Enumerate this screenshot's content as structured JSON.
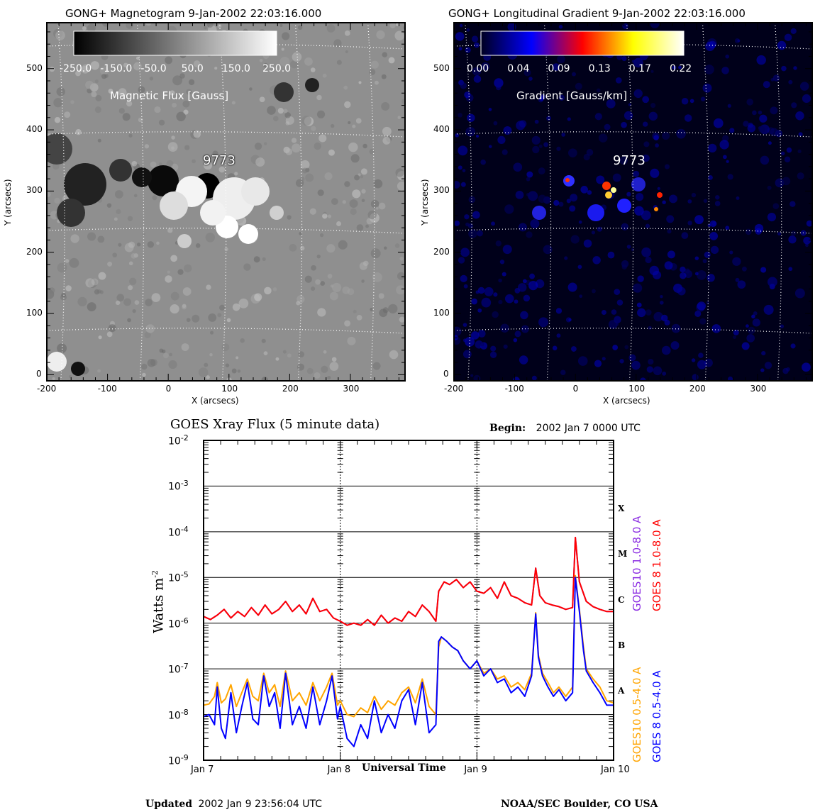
{
  "chart_data": [
    {
      "type": "heatmap",
      "title": "GONG+ Magnetogram   9-Jan-2002 22:03:16.000",
      "colorbar": {
        "ticks": [
          "-250.0",
          "-150.0",
          "-50.0",
          "50.0",
          "150.0",
          "250.0"
        ],
        "label": "Magnetic Flux [Gauss]",
        "range": [
          -250,
          250
        ],
        "colors": [
          "#000000",
          "#ffffff"
        ]
      },
      "xlabel": "X (arcsecs)",
      "ylabel": "Y (arcsecs)",
      "xticks": [
        "-200",
        "-100",
        "0",
        "100",
        "200",
        "300"
      ],
      "yticks": [
        "0",
        "100",
        "200",
        "300",
        "400",
        "500"
      ],
      "xlim": [
        -200,
        390
      ],
      "ylim": [
        -10,
        575
      ],
      "annotation": "9773",
      "grid": true
    },
    {
      "type": "heatmap",
      "title": "GONG+ Longitudinal Gradient   9-Jan-2002 22:03:16.000",
      "colorbar": {
        "ticks": [
          "0.00",
          "0.04",
          "0.09",
          "0.13",
          "0.17",
          "0.22"
        ],
        "label": "Gradient [Gauss/km]",
        "range": [
          0,
          0.22
        ],
        "colors": [
          "#000020",
          "#0000ff",
          "#ff0000",
          "#ffff00",
          "#ffffff"
        ]
      },
      "xlabel": "X (arcsecs)",
      "ylabel": "Y (arcsecs)",
      "xticks": [
        "-200",
        "-100",
        "0",
        "100",
        "200",
        "300"
      ],
      "yticks": [
        "0",
        "100",
        "200",
        "300",
        "400",
        "500"
      ],
      "xlim": [
        -200,
        390
      ],
      "ylim": [
        -10,
        575
      ],
      "annotation": "9773",
      "grid": true
    },
    {
      "type": "line",
      "title": "GOES Xray Flux (5 minute data)",
      "begin_label": "Begin:",
      "begin_value": "2002 Jan 7 0000 UTC",
      "xlabel": "Universal Time",
      "ylabel": "Watts m",
      "ylabel_sup": "-2",
      "yscale": "log",
      "ylim_exp": [
        -9,
        -2
      ],
      "ytick_base": "10",
      "ytick_exps": [
        "-9",
        "-8",
        "-7",
        "-6",
        "-5",
        "-4",
        "-3",
        "-2"
      ],
      "xticks": [
        "Jan 7",
        "Jan 8",
        "Jan 9",
        "Jan 10"
      ],
      "xlim_days": [
        0,
        3
      ],
      "classes": [
        {
          "label": "A",
          "exp": -7.5
        },
        {
          "label": "B",
          "exp": -6.5
        },
        {
          "label": "C",
          "exp": -5.5
        },
        {
          "label": "M",
          "exp": -4.5
        },
        {
          "label": "X",
          "exp": -3.5
        }
      ],
      "series": [
        {
          "name": "GOES10 0.5-4.0 A",
          "color": "#ffa500",
          "x": [
            0,
            0.04,
            0.08,
            0.1,
            0.13,
            0.16,
            0.2,
            0.24,
            0.28,
            0.32,
            0.36,
            0.4,
            0.44,
            0.48,
            0.52,
            0.56,
            0.6,
            0.65,
            0.7,
            0.75,
            0.8,
            0.85,
            0.9,
            0.94,
            0.98,
            1.0,
            1.05,
            1.1,
            1.15,
            1.2,
            1.25,
            1.3,
            1.35,
            1.4,
            1.45,
            1.5,
            1.55,
            1.6,
            1.65,
            1.7,
            1.72,
            1.74,
            1.78,
            1.82,
            1.86,
            1.9,
            1.95,
            2.0,
            2.05,
            2.1,
            2.15,
            2.2,
            2.25,
            2.3,
            2.35,
            2.4,
            2.43,
            2.45,
            2.48,
            2.52,
            2.56,
            2.6,
            2.65,
            2.7,
            2.72,
            2.75,
            2.78,
            2.8,
            2.85,
            2.9,
            2.95,
            3.0
          ],
          "y": [
            1.6e-08,
            1.7e-08,
            2.5e-08,
            5e-08,
            1.8e-08,
            2.2e-08,
            4.5e-08,
            1.5e-08,
            3e-08,
            6e-08,
            2.5e-08,
            2e-08,
            8e-08,
            3e-08,
            4.5e-08,
            1.5e-08,
            9e-08,
            2e-08,
            3e-08,
            1.6e-08,
            5e-08,
            2e-08,
            4e-08,
            8e-08,
            1.6e-08,
            2e-08,
            1e-08,
            9e-09,
            1.4e-08,
            1.1e-08,
            2.5e-08,
            1.3e-08,
            2e-08,
            1.6e-08,
            3e-08,
            4e-08,
            1.8e-08,
            6e-08,
            1.5e-08,
            1e-08,
            3e-07,
            5e-07,
            4e-07,
            3e-07,
            2.5e-07,
            1.5e-07,
            1e-07,
            1.5e-07,
            8e-08,
            1e-07,
            6e-08,
            7e-08,
            4e-08,
            5e-08,
            3.5e-08,
            8e-08,
            1.7e-06,
            2e-07,
            8e-08,
            5e-08,
            3e-08,
            4e-08,
            2.5e-08,
            4e-08,
            1.1e-05,
            2e-06,
            3e-07,
            1e-07,
            6e-08,
            4e-08,
            2e-08,
            1.8e-08
          ]
        },
        {
          "name": "GOES 8 0.5-4.0 A",
          "color": "#0000ff",
          "x": [
            0,
            0.04,
            0.08,
            0.1,
            0.13,
            0.16,
            0.2,
            0.24,
            0.28,
            0.32,
            0.36,
            0.4,
            0.44,
            0.48,
            0.52,
            0.56,
            0.6,
            0.65,
            0.7,
            0.75,
            0.8,
            0.85,
            0.9,
            0.94,
            0.98,
            1.0,
            1.05,
            1.1,
            1.15,
            1.2,
            1.25,
            1.3,
            1.35,
            1.4,
            1.45,
            1.5,
            1.55,
            1.6,
            1.65,
            1.7,
            1.72,
            1.74,
            1.78,
            1.82,
            1.86,
            1.9,
            1.95,
            2.0,
            2.05,
            2.1,
            2.15,
            2.2,
            2.25,
            2.3,
            2.35,
            2.4,
            2.43,
            2.45,
            2.48,
            2.52,
            2.56,
            2.6,
            2.65,
            2.7,
            2.72,
            2.75,
            2.78,
            2.8,
            2.85,
            2.9,
            2.95,
            3.0
          ],
          "y": [
            9e-09,
            1e-08,
            6e-09,
            4e-08,
            5e-09,
            3e-09,
            3e-08,
            4e-09,
            1.5e-08,
            5e-08,
            8e-09,
            6e-09,
            7e-08,
            1.5e-08,
            3e-08,
            5e-09,
            8e-08,
            6e-09,
            1.5e-08,
            5e-09,
            4e-08,
            6e-09,
            2e-08,
            7e-08,
            8e-09,
            1.5e-08,
            3e-09,
            2e-09,
            6e-09,
            3e-09,
            2e-08,
            4e-09,
            1e-08,
            5e-09,
            2e-08,
            3.5e-08,
            6e-09,
            5e-08,
            4e-09,
            6e-09,
            4e-07,
            5e-07,
            4e-07,
            3e-07,
            2.5e-07,
            1.5e-07,
            1e-07,
            1.5e-07,
            7e-08,
            1e-07,
            5e-08,
            6e-08,
            3e-08,
            4e-08,
            2.5e-08,
            7e-08,
            1.6e-06,
            1.8e-07,
            7e-08,
            4e-08,
            2.5e-08,
            3.5e-08,
            2e-08,
            3e-08,
            1e-05,
            1.8e-06,
            2.5e-07,
            9e-08,
            5e-08,
            3e-08,
            1.6e-08,
            1.6e-08
          ]
        },
        {
          "name": "GOES10 1.0-8.0 A",
          "color": "#8a2be2",
          "x": [
            0,
            0.05,
            0.1,
            0.15,
            0.2,
            0.25,
            0.3,
            0.35,
            0.4,
            0.45,
            0.5,
            0.55,
            0.6,
            0.65,
            0.7,
            0.75,
            0.8,
            0.85,
            0.9,
            0.95,
            1.0,
            1.05,
            1.1,
            1.15,
            1.2,
            1.25,
            1.3,
            1.35,
            1.4,
            1.45,
            1.5,
            1.55,
            1.6,
            1.65,
            1.7,
            1.72,
            1.76,
            1.8,
            1.85,
            1.9,
            1.95,
            2.0,
            2.05,
            2.1,
            2.15,
            2.2,
            2.25,
            2.3,
            2.35,
            2.4,
            2.43,
            2.46,
            2.5,
            2.55,
            2.6,
            2.65,
            2.7,
            2.72,
            2.75,
            2.8,
            2.85,
            2.9,
            2.95,
            3.0
          ],
          "y": [
            1.4e-06,
            1.2e-06,
            1.5e-06,
            2e-06,
            1.3e-06,
            1.8e-06,
            1.4e-06,
            2.2e-06,
            1.5e-06,
            2.5e-06,
            1.6e-06,
            2e-06,
            3e-06,
            1.8e-06,
            2.5e-06,
            1.6e-06,
            3.5e-06,
            1.8e-06,
            2e-06,
            1.3e-06,
            1.1e-06,
            9e-07,
            1e-06,
            9e-07,
            1.2e-06,
            9e-07,
            1.5e-06,
            1e-06,
            1.3e-06,
            1.1e-06,
            1.8e-06,
            1.4e-06,
            2.5e-06,
            1.8e-06,
            1.1e-06,
            5e-06,
            8e-06,
            7e-06,
            9e-06,
            6e-06,
            8e-06,
            5e-06,
            4.5e-06,
            6e-06,
            3.5e-06,
            8e-06,
            4e-06,
            3.5e-06,
            2.8e-06,
            2.5e-06,
            1.6e-05,
            4e-06,
            2.8e-06,
            2.5e-06,
            2.3e-06,
            2e-06,
            2.2e-06,
            7.5e-05,
            8e-06,
            3e-06,
            2.3e-06,
            2e-06,
            1.8e-06,
            1.8e-06
          ]
        },
        {
          "name": "GOES 8 1.0-8.0 A",
          "color": "#ff0000",
          "x": [
            0,
            0.05,
            0.1,
            0.15,
            0.2,
            0.25,
            0.3,
            0.35,
            0.4,
            0.45,
            0.5,
            0.55,
            0.6,
            0.65,
            0.7,
            0.75,
            0.8,
            0.85,
            0.9,
            0.95,
            1.0,
            1.05,
            1.1,
            1.15,
            1.2,
            1.25,
            1.3,
            1.35,
            1.4,
            1.45,
            1.5,
            1.55,
            1.6,
            1.65,
            1.7,
            1.72,
            1.76,
            1.8,
            1.85,
            1.9,
            1.95,
            2.0,
            2.05,
            2.1,
            2.15,
            2.2,
            2.25,
            2.3,
            2.35,
            2.4,
            2.43,
            2.46,
            2.5,
            2.55,
            2.6,
            2.65,
            2.7,
            2.72,
            2.75,
            2.8,
            2.85,
            2.9,
            2.95,
            3.0
          ],
          "y": [
            1.4e-06,
            1.2e-06,
            1.5e-06,
            2e-06,
            1.3e-06,
            1.8e-06,
            1.4e-06,
            2.2e-06,
            1.5e-06,
            2.5e-06,
            1.6e-06,
            2e-06,
            3e-06,
            1.8e-06,
            2.5e-06,
            1.6e-06,
            3.5e-06,
            1.8e-06,
            2e-06,
            1.3e-06,
            1.1e-06,
            9e-07,
            1e-06,
            9e-07,
            1.2e-06,
            9e-07,
            1.5e-06,
            1e-06,
            1.3e-06,
            1.1e-06,
            1.8e-06,
            1.4e-06,
            2.5e-06,
            1.8e-06,
            1.1e-06,
            5e-06,
            8e-06,
            7e-06,
            9e-06,
            6e-06,
            8e-06,
            5e-06,
            4.5e-06,
            6e-06,
            3.5e-06,
            8e-06,
            4e-06,
            3.5e-06,
            2.8e-06,
            2.5e-06,
            1.6e-05,
            4e-06,
            2.8e-06,
            2.5e-06,
            2.3e-06,
            2e-06,
            2.2e-06,
            7.5e-05,
            8e-06,
            3e-06,
            2.3e-06,
            2e-06,
            1.8e-06,
            1.8e-06
          ]
        }
      ],
      "footer_left_label": "Updated",
      "footer_left_value": "2002 Jan  9 23:56:04 UTC",
      "footer_right": "NOAA/SEC Boulder, CO USA"
    }
  ]
}
